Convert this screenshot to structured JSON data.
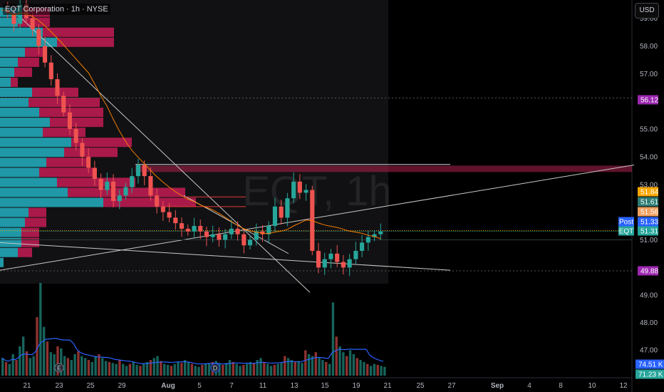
{
  "header": {
    "symbol_line": "EQT Corporation · 1h · NYSE",
    "currency_button": "USD"
  },
  "watermark": "EQT, 1h",
  "chart_data": {
    "type": "candlestick",
    "symbol": "EQT",
    "interval": "1h",
    "exchange": "NYSE",
    "y_range": [
      47.0,
      59.0
    ],
    "y_ticks": [
      "59.00",
      "58.00",
      "57.00",
      "55.00",
      "54.00",
      "53.00",
      "51.00",
      "49.00",
      "48.00",
      "47.00"
    ],
    "x_ticks": [
      "21",
      "23",
      "25",
      "29",
      "Aug",
      "5",
      "7",
      "11",
      "13",
      "15",
      "19",
      "21",
      "25",
      "27",
      "Sep",
      "4",
      "8",
      "10",
      "12"
    ],
    "price_path": [
      [
        0,
        59.3
      ],
      [
        2,
        59.2
      ],
      [
        4,
        58.8
      ],
      [
        6,
        59.5
      ],
      [
        8,
        59.0
      ],
      [
        10,
        58.6
      ],
      [
        12,
        58.0
      ],
      [
        14,
        57.4
      ],
      [
        16,
        56.8
      ],
      [
        18,
        56.2
      ],
      [
        20,
        55.6
      ],
      [
        22,
        55.0
      ],
      [
        24,
        54.5
      ],
      [
        26,
        54.0
      ],
      [
        28,
        53.6
      ],
      [
        30,
        53.2
      ],
      [
        32,
        52.8
      ],
      [
        34,
        53.1
      ],
      [
        36,
        52.4
      ],
      [
        38,
        52.6
      ],
      [
        40,
        52.9
      ],
      [
        42,
        53.3
      ],
      [
        44,
        53.7
      ],
      [
        46,
        53.3
      ],
      [
        48,
        52.6
      ],
      [
        50,
        52.2
      ],
      [
        52,
        52.0
      ],
      [
        54,
        51.8
      ],
      [
        56,
        51.6
      ],
      [
        58,
        51.4
      ],
      [
        60,
        51.3
      ],
      [
        62,
        51.5
      ],
      [
        64,
        51.3
      ],
      [
        66,
        51.1
      ],
      [
        68,
        51.2
      ],
      [
        70,
        51.0
      ],
      [
        72,
        51.2
      ],
      [
        74,
        51.4
      ],
      [
        76,
        51.2
      ],
      [
        78,
        50.8
      ],
      [
        80,
        51.0
      ],
      [
        82,
        51.3
      ],
      [
        84,
        51.2
      ],
      [
        86,
        51.5
      ],
      [
        88,
        52.2
      ],
      [
        90,
        51.8
      ],
      [
        92,
        52.5
      ],
      [
        94,
        53.1
      ],
      [
        96,
        52.7
      ],
      [
        98,
        52.8
      ],
      [
        100,
        50.6
      ],
      [
        102,
        50.0
      ],
      [
        104,
        50.3
      ],
      [
        106,
        50.5
      ],
      [
        108,
        50.2
      ],
      [
        110,
        50.0
      ],
      [
        112,
        50.3
      ],
      [
        114,
        50.6
      ],
      [
        116,
        50.9
      ],
      [
        118,
        51.1
      ],
      [
        120,
        51.2
      ],
      [
        122,
        51.3
      ]
    ],
    "price_labels": [
      {
        "label": "56.12",
        "value": 56.12,
        "color": "#9c27b0"
      },
      {
        "label": "51.84",
        "value": 51.84,
        "color": "#f7a600"
      },
      {
        "label": "51.61",
        "value": 51.61,
        "color": "#2e7d74"
      },
      {
        "label": "51.56",
        "value": 51.56,
        "color": "#f0a060"
      },
      {
        "label": "51.33",
        "value": 51.33,
        "color": "#2962ff",
        "tag": "Post"
      },
      {
        "label": "51.31",
        "value": 51.31,
        "color": "#26a69a",
        "tag": "EQT"
      },
      {
        "label": "49.88",
        "value": 49.88,
        "color": "#9c27b0"
      }
    ],
    "volume_labels": [
      {
        "label": "74.51 K",
        "color": "#2962ff"
      },
      {
        "label": "71.23 K",
        "color": "#26a69a"
      }
    ],
    "volume_profile": {
      "rows": [
        {
          "up": 30,
          "down": 40
        },
        {
          "up": 25,
          "down": 45
        },
        {
          "up": 60,
          "down": 100
        },
        {
          "up": 80,
          "down": 80
        },
        {
          "up": 35,
          "down": 25
        },
        {
          "up": 25,
          "down": 30
        },
        {
          "up": 20,
          "down": 25
        },
        {
          "up": 15,
          "down": 10
        },
        {
          "up": 45,
          "down": 65
        },
        {
          "up": 40,
          "down": 100
        },
        {
          "up": 55,
          "down": 90
        },
        {
          "up": 70,
          "down": 75
        },
        {
          "up": 60,
          "down": 60
        },
        {
          "up": 100,
          "down": 85
        },
        {
          "up": 90,
          "down": 75
        },
        {
          "up": 65,
          "down": 60
        },
        {
          "up": 55,
          "down": 75
        },
        {
          "up": 80,
          "down": 110
        },
        {
          "up": 95,
          "down": 165
        },
        {
          "up": 145,
          "down": 130
        },
        {
          "up": 40,
          "down": 25
        },
        {
          "up": 35,
          "down": 30
        },
        {
          "up": 30,
          "down": 25
        },
        {
          "up": 30,
          "down": 25
        },
        {
          "up": 25,
          "down": 20
        },
        {
          "up": 5,
          "down": 0
        }
      ]
    },
    "volume": [
      18,
      14,
      12,
      22,
      16,
      30,
      40,
      25,
      18,
      20,
      60,
      95,
      50,
      35,
      24,
      22,
      30,
      28,
      20,
      18,
      16,
      22,
      25,
      20,
      18,
      16,
      14,
      20,
      22,
      18,
      15,
      14,
      13,
      12,
      16,
      12,
      10,
      12,
      14,
      11,
      10,
      12,
      14,
      16,
      18,
      20,
      15,
      12,
      11,
      10,
      12,
      14,
      13,
      16,
      14,
      12,
      10,
      9,
      11,
      12,
      13,
      14,
      15,
      12,
      11,
      13,
      16,
      14,
      12,
      10,
      11,
      12,
      14,
      13,
      16,
      18,
      14,
      12,
      10,
      11,
      12,
      13,
      20,
      18,
      16,
      14,
      15,
      13,
      26,
      22,
      20,
      24,
      18,
      16,
      14,
      12,
      75,
      40,
      30,
      24,
      20,
      26,
      22,
      18,
      16,
      14,
      12,
      10,
      12,
      11,
      10,
      9
    ]
  }
}
